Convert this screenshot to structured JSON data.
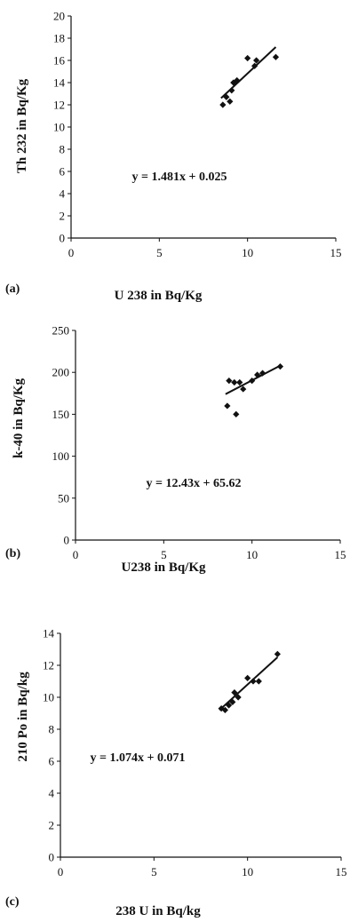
{
  "chart_data": [
    {
      "type": "scatter",
      "panel_label": "(a)",
      "xlabel": "U 238 in Bq/Kg",
      "ylabel": "Th 232  in Bq/Kg",
      "xlim": [
        0,
        15
      ],
      "ylim": [
        0,
        20
      ],
      "xticks": [
        0,
        5,
        10,
        15
      ],
      "yticks": [
        0,
        2,
        4,
        6,
        8,
        10,
        12,
        14,
        16,
        18,
        20
      ],
      "grid": false,
      "equation": "y = 1.481x + 0.025",
      "trendline": {
        "x": [
          8.5,
          11.6
        ],
        "y": [
          12.6,
          17.2
        ]
      },
      "series": [
        {
          "points": [
            [
              8.6,
              12.0
            ],
            [
              8.8,
              12.7
            ],
            [
              9.0,
              12.3
            ],
            [
              9.1,
              13.3
            ],
            [
              9.2,
              14.0
            ],
            [
              9.4,
              14.2
            ],
            [
              10.0,
              16.2
            ],
            [
              10.4,
              15.5
            ],
            [
              10.5,
              16.0
            ],
            [
              11.6,
              16.3
            ]
          ]
        }
      ]
    },
    {
      "type": "scatter",
      "panel_label": "(b)",
      "xlabel": "U238 in Bq/Kg",
      "ylabel": "k-40  in Bq/Kg",
      "xlim": [
        0,
        15
      ],
      "ylim": [
        0,
        250
      ],
      "xticks": [
        0,
        5,
        10,
        15
      ],
      "yticks": [
        0,
        50,
        100,
        150,
        200,
        250
      ],
      "grid": false,
      "equation": "y = 12.43x + 65.62",
      "trendline": {
        "x": [
          8.5,
          11.6
        ],
        "y": [
          174,
          208
        ]
      },
      "series": [
        {
          "points": [
            [
              8.6,
              160
            ],
            [
              8.7,
              190
            ],
            [
              9.0,
              188
            ],
            [
              9.1,
              150
            ],
            [
              9.3,
              188
            ],
            [
              9.5,
              180
            ],
            [
              10.0,
              190
            ],
            [
              10.3,
              197
            ],
            [
              10.6,
              199
            ],
            [
              11.6,
              207
            ]
          ]
        }
      ]
    },
    {
      "type": "scatter",
      "panel_label": "(c)",
      "xlabel": "238 U in Bq/kg",
      "ylabel": "210 Po in Bq/kg",
      "xlim": [
        0,
        15
      ],
      "ylim": [
        0,
        14
      ],
      "xticks": [
        0,
        5,
        10,
        15
      ],
      "yticks": [
        0,
        2,
        4,
        6,
        8,
        10,
        12,
        14
      ],
      "grid": false,
      "equation": "y = 1.074x  + 0.071",
      "trendline": {
        "x": [
          8.5,
          11.6
        ],
        "y": [
          9.2,
          12.5
        ]
      },
      "series": [
        {
          "points": [
            [
              8.6,
              9.3
            ],
            [
              8.8,
              9.2
            ],
            [
              9.0,
              9.5
            ],
            [
              9.2,
              9.7
            ],
            [
              9.3,
              10.3
            ],
            [
              9.5,
              10.0
            ],
            [
              10.0,
              11.2
            ],
            [
              10.3,
              11.0
            ],
            [
              10.6,
              11.0
            ],
            [
              11.6,
              12.7
            ]
          ]
        }
      ]
    }
  ]
}
